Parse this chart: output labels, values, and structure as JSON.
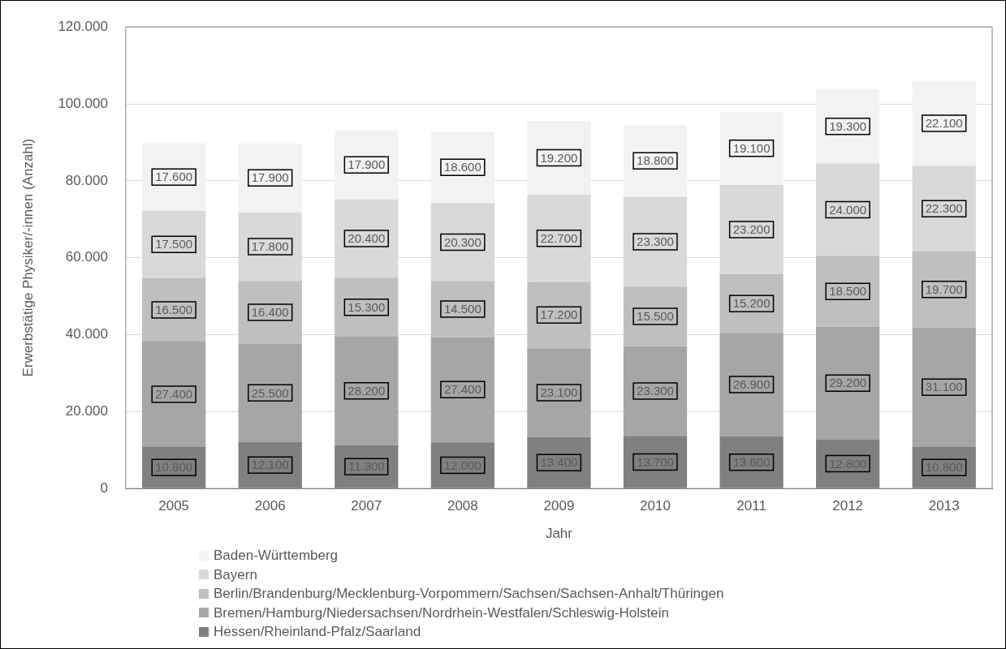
{
  "chart_data": {
    "type": "bar",
    "stacked": true,
    "xlabel": "Jahr",
    "ylabel": "Erwerbstätige Physiker/-innen (Anzahl)",
    "categories": [
      "2005",
      "2006",
      "2007",
      "2008",
      "2009",
      "2010",
      "2011",
      "2012",
      "2013"
    ],
    "ylim": [
      0,
      120000
    ],
    "yticks": [
      0,
      {
        "value": 20000,
        "label": "20.000"
      },
      {
        "value": 40000,
        "label": "40.000"
      },
      {
        "value": 60000,
        "label": "60.000"
      },
      {
        "value": 80000,
        "label": "80.000"
      },
      {
        "value": 100000,
        "label": "100.000"
      },
      {
        "value": 120000,
        "label": "120.000"
      }
    ],
    "grid": "y",
    "legend": "bottom",
    "series": [
      {
        "name": "Hessen/Rheinland-Pfalz/Saarland",
        "color": "#808080",
        "values": [
          10800,
          12100,
          11300,
          12000,
          13400,
          13700,
          13600,
          12800,
          10800
        ],
        "value_labels": [
          "10.800",
          "12.100",
          "11.300",
          "12.000",
          "13.400",
          "13.700",
          "13.600",
          "12.800",
          "10.800"
        ]
      },
      {
        "name": "Bremen/Hamburg/Niedersachsen/Nordrhein-Westfalen/Schleswig-Holstein",
        "color": "#a6a6a6",
        "values": [
          27400,
          25500,
          28200,
          27400,
          23100,
          23300,
          26900,
          29200,
          31100
        ],
        "value_labels": [
          "27.400",
          "25.500",
          "28.200",
          "27.400",
          "23.100",
          "23.300",
          "26.900",
          "29.200",
          "31.100"
        ]
      },
      {
        "name": "Berlin/Brandenburg/Mecklenburg-Vorpommern/Sachsen/Sachsen-Anhalt/Thüringen",
        "color": "#bfbfbf",
        "values": [
          16500,
          16400,
          15300,
          14500,
          17200,
          15500,
          15200,
          18500,
          19700
        ],
        "value_labels": [
          "16.500",
          "16.400",
          "15.300",
          "14.500",
          "17.200",
          "15.500",
          "15.200",
          "18.500",
          "19.700"
        ]
      },
      {
        "name": "Bayern",
        "color": "#d9d9d9",
        "values": [
          17500,
          17800,
          20400,
          20300,
          22700,
          23300,
          23200,
          24000,
          22300
        ],
        "value_labels": [
          "17.500",
          "17.800",
          "20.400",
          "20.300",
          "22.700",
          "23.300",
          "23.200",
          "24.000",
          "22.300"
        ]
      },
      {
        "name": "Baden-Württemberg",
        "color": "#f2f2f2",
        "values": [
          17600,
          17900,
          17900,
          18600,
          19200,
          18800,
          19100,
          19300,
          22100
        ],
        "value_labels": [
          "17.600",
          "17.900",
          "17.900",
          "18.600",
          "19.200",
          "18.800",
          "19.100",
          "19.300",
          "22.100"
        ]
      }
    ]
  }
}
